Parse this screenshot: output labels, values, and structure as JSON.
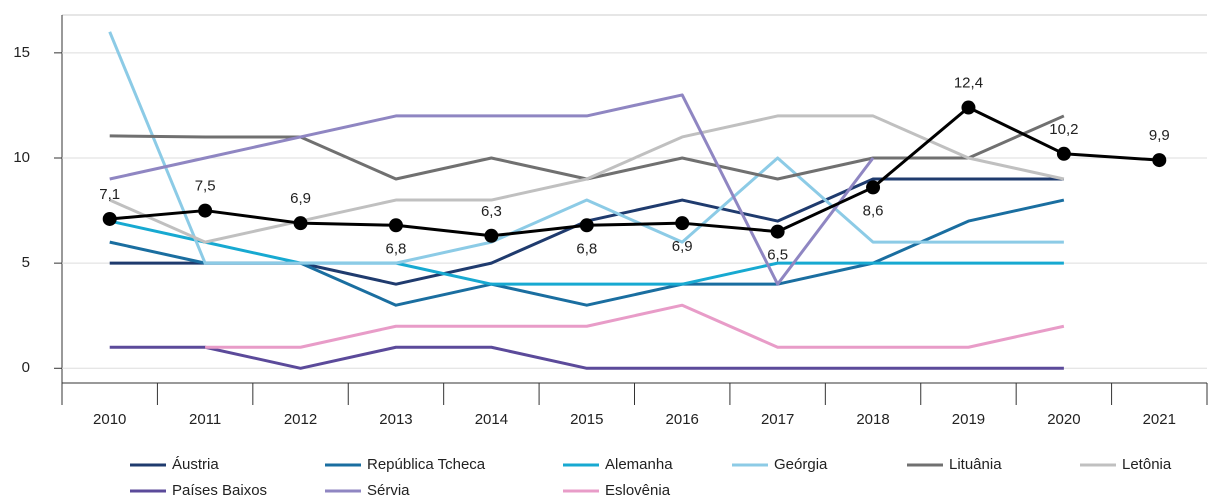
{
  "chart_data": {
    "type": "line",
    "categories": [
      "2010",
      "2011",
      "2012",
      "2013",
      "2014",
      "2015",
      "2016",
      "2017",
      "2018",
      "2019",
      "2020",
      "2021"
    ],
    "ylim": [
      -0.7,
      16.8
    ],
    "yticks": [
      0,
      5,
      10,
      15
    ],
    "grid": true,
    "series": [
      {
        "name": "Áustria",
        "color": "#1f3b6e",
        "values": [
          5,
          5,
          5,
          4,
          5,
          7,
          8,
          7,
          9,
          9,
          9,
          null
        ]
      },
      {
        "name": "República Tcheca",
        "color": "#1a6ea0",
        "values": [
          6,
          5,
          5,
          3,
          4,
          3,
          4,
          4,
          5,
          7,
          8,
          null
        ]
      },
      {
        "name": "Alemanha",
        "color": "#17a9d1",
        "values": [
          7,
          6,
          5,
          5,
          4,
          4,
          4,
          5,
          5,
          5,
          5,
          null
        ]
      },
      {
        "name": "Geórgia",
        "color": "#8ccbe6",
        "values": [
          16,
          5,
          5,
          5,
          6,
          8,
          6,
          10,
          6,
          6,
          6,
          null
        ]
      },
      {
        "name": "Lituânia",
        "color": "#707070",
        "values": [
          11.05,
          11,
          11,
          9,
          10,
          9,
          10,
          9,
          10,
          10,
          12,
          null
        ]
      },
      {
        "name": "Letônia",
        "color": "#c0c0c0",
        "values": [
          8,
          6,
          7,
          8,
          8,
          9,
          11,
          12,
          12,
          10,
          9,
          null
        ]
      },
      {
        "name": "Países Baixos",
        "color": "#5b4a9a",
        "values": [
          1,
          1,
          0,
          1,
          1,
          0,
          0,
          0,
          0,
          0,
          0,
          null
        ]
      },
      {
        "name": "Sérvia",
        "color": "#8f86c2",
        "values": [
          9,
          10,
          11,
          12,
          12,
          12,
          13,
          4,
          10,
          null,
          null,
          null
        ]
      },
      {
        "name": "Eslovênia",
        "color": "#e89cc8",
        "values": [
          null,
          1,
          1,
          2,
          2,
          2,
          3,
          1,
          1,
          1,
          2,
          null
        ]
      },
      {
        "color": "#000000",
        "values": [
          7.1,
          7.5,
          6.9,
          6.8,
          6.3,
          6.8,
          6.9,
          6.5,
          8.6,
          12.4,
          10.2,
          9.9
        ],
        "value_labels": [
          "7,1",
          "7,5",
          "6,9",
          "6,8",
          "6,3",
          "6,8",
          "6,9",
          "6,5",
          "8,6",
          "12,4",
          "10,2",
          "9,9"
        ]
      }
    ]
  }
}
